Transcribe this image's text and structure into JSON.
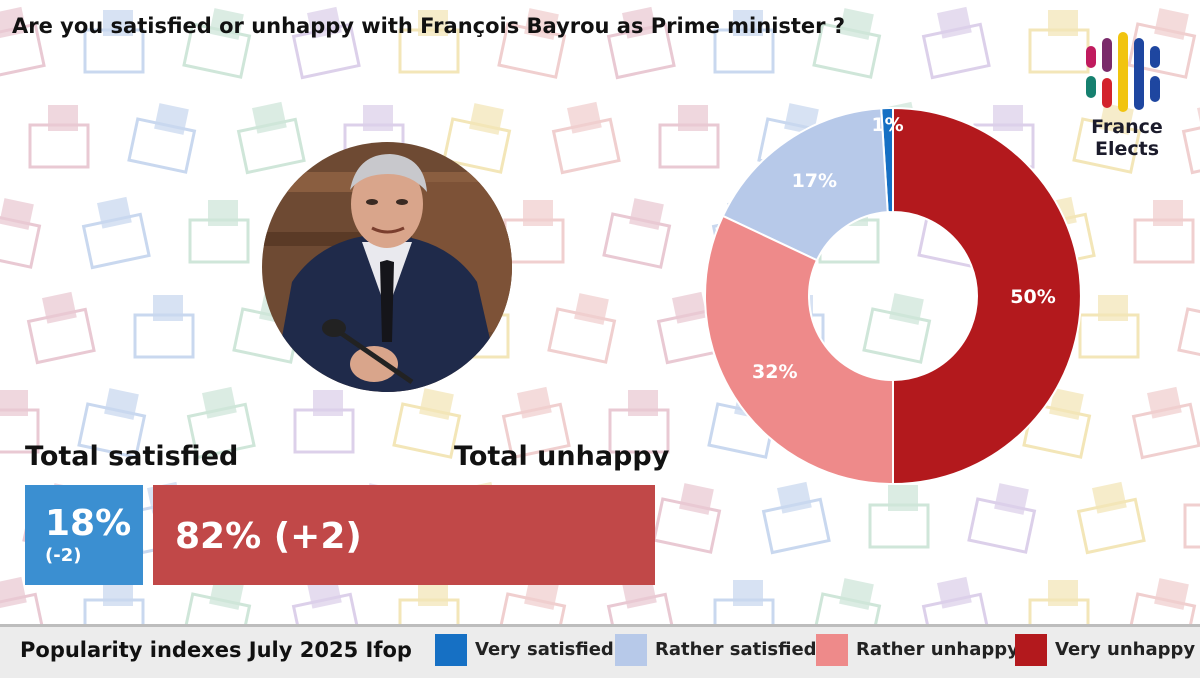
{
  "title": "Are you satisfied or unhappy with François Bayrou as Prime minister ?",
  "logo": {
    "line1": "France",
    "line2": "Elects"
  },
  "totals": {
    "satisfied_label": "Total satisfied",
    "unhappy_label": "Total unhappy",
    "satisfied_value": "18%",
    "satisfied_change": "(-2)",
    "unhappy_value": "82% (+2)"
  },
  "footer": {
    "source": "Popularity indexes July 2025 Ifop"
  },
  "colors": {
    "very_satisfied": "#1670c4",
    "rather_satisfied": "#b7c9e9",
    "rather_unhappy": "#ee8a8a",
    "very_unhappy": "#b3191d",
    "satisfied_box": "#3b8fd1",
    "unhappy_box": "#c14848"
  },
  "chart_data": {
    "type": "pie",
    "donut": true,
    "categories": [
      "Very satisfied",
      "Rather satisfied",
      "Rather unhappy",
      "Very unhappy"
    ],
    "values": [
      1,
      17,
      32,
      50
    ],
    "value_labels": [
      "1%",
      "17%",
      "32%",
      "50%"
    ],
    "colors": [
      "#1670c4",
      "#b7c9e9",
      "#ee8a8a",
      "#b3191d"
    ],
    "legend": "bottom"
  }
}
